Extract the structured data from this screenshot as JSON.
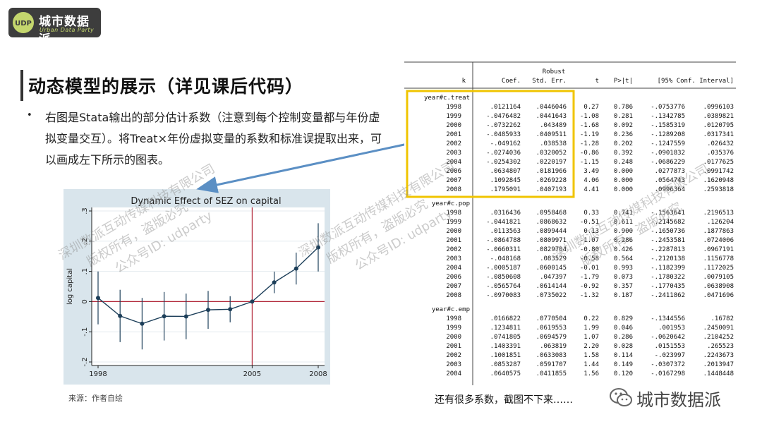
{
  "brand": {
    "logo_badge": "UDP",
    "logo_title": "城市数据派",
    "logo_subtitle": "Urban Data Party",
    "footer_name": "城市数据派",
    "accent_color": "#c4d66d"
  },
  "slide": {
    "title": "动态模型的展示（详见课后代码）",
    "bullet": "右图是Stata输出的部分估计系数（注意到每个控制变量都与年份虚拟变量交互）。将Treat×年份虚拟变量的系数和标准误提取出来，可以画成左下所示的图表。",
    "source": "来源：作者自绘",
    "note": "还有很多系数，截图不下来……"
  },
  "watermark": {
    "line1": "深圳数派互动传媒科技有限公司",
    "line2": "版权所有，盗版必究",
    "line3": "公众号ID: udparty"
  },
  "chart_data": {
    "type": "line",
    "title": "Dynamic Effect of SEZ on capital",
    "xlabel": "",
    "ylabel": "log capital",
    "x": [
      1998,
      1999,
      2000,
      2001,
      2002,
      2003,
      2004,
      2005,
      2006,
      2007,
      2008
    ],
    "y": [
      0.0121164,
      -0.0476482,
      -0.0732262,
      -0.0485933,
      -0.049162,
      -0.0274036,
      -0.0254302,
      0,
      0.0634807,
      0.1092845,
      0.1795091
    ],
    "ci_low": [
      -0.0753776,
      -0.1342785,
      -0.1585319,
      -0.1289208,
      -0.1247559,
      -0.0901832,
      -0.0686229,
      0,
      0.0277873,
      0.0564743,
      0.0996364
    ],
    "ci_high": [
      0.0996103,
      0.0389821,
      0.0120795,
      0.0317341,
      0.026432,
      0.035376,
      0.0177625,
      0,
      0.0991742,
      0.1620948,
      0.2593818
    ],
    "x_ticks": [
      "1998",
      "2005",
      "2008"
    ],
    "y_ticks": [
      "-.2",
      "-.1",
      "0",
      ".1",
      ".2",
      ".3"
    ],
    "xlim": [
      1998,
      2008
    ],
    "ylim": [
      -0.2,
      0.3
    ],
    "reference_lines": {
      "x": 2005,
      "y": 0
    },
    "reference_color": "#b2283a",
    "series_color": "#1d3f5a",
    "background": "#d9e5ec"
  },
  "stata_table": {
    "header1": [
      "",
      "",
      "Robust",
      "",
      "",
      "",
      ""
    ],
    "header2": [
      "k",
      "Coef.",
      "Std. Err.",
      "t",
      "P>|t|",
      "[95% Conf. Interval]",
      ""
    ],
    "groups": [
      {
        "name": "year#c.treat",
        "rows": [
          [
            "1998",
            ".0121164",
            ".0446046",
            "0.27",
            "0.786",
            "-.0753776",
            ".0996103"
          ],
          [
            "1999",
            "-.0476482",
            ".0441643",
            "-1.08",
            "0.281",
            "-.1342785",
            ".0389821"
          ],
          [
            "2000",
            "-.0732262",
            ".043489",
            "-1.68",
            "0.092",
            "-.1585319",
            ".0120795"
          ],
          [
            "2001",
            "-.0485933",
            ".0409511",
            "-1.19",
            "0.236",
            "-.1289208",
            ".0317341"
          ],
          [
            "2002",
            "-.049162",
            ".038538",
            "-1.28",
            "0.202",
            "-.1247559",
            ".026432"
          ],
          [
            "2003",
            "-.0274036",
            ".0320052",
            "-0.86",
            "0.392",
            "-.0901832",
            ".035376"
          ],
          [
            "2004",
            "-.0254302",
            ".0220197",
            "-1.15",
            "0.248",
            "-.0686229",
            ".0177625"
          ],
          [
            "2006",
            ".0634807",
            ".0181966",
            "3.49",
            "0.000",
            ".0277873",
            ".0991742"
          ],
          [
            "2007",
            ".1092845",
            ".0269228",
            "4.06",
            "0.000",
            ".0564743",
            ".1620948"
          ],
          [
            "2008",
            ".1795091",
            ".0407193",
            "4.41",
            "0.000",
            ".0996364",
            ".2593818"
          ]
        ]
      },
      {
        "name": "year#c.pop",
        "rows": [
          [
            "1998",
            ".0316436",
            ".0958468",
            "0.33",
            "0.741",
            "-.1563641",
            ".2196513"
          ],
          [
            "1999",
            "-.0441821",
            ".0868632",
            "-0.51",
            "0.611",
            "-.2145682",
            ".126204"
          ],
          [
            "2000",
            ".0113563",
            ".0899444",
            "0.13",
            "0.900",
            "-.1650736",
            ".1877863"
          ],
          [
            "2001",
            "-.0864788",
            ".0809971",
            "-1.07",
            "0.286",
            "-.2453581",
            ".0724006"
          ],
          [
            "2002",
            "-.0660311",
            ".0829704",
            "-0.80",
            "0.426",
            "-.2287813",
            ".0967191"
          ],
          [
            "2003",
            "-.048168",
            ".083529",
            "-0.58",
            "0.564",
            "-.2120138",
            ".1156778"
          ],
          [
            "2004",
            "-.0005187",
            ".0600145",
            "-0.01",
            "0.993",
            "-.1182399",
            ".1172025"
          ],
          [
            "2006",
            "-.0850608",
            ".047397",
            "-1.79",
            "0.073",
            "-.1780322",
            ".0079105"
          ],
          [
            "2007",
            "-.0565764",
            ".0614144",
            "-0.92",
            "0.357",
            "-.1770435",
            ".0638908"
          ],
          [
            "2008",
            "-.0970083",
            ".0735022",
            "-1.32",
            "0.187",
            "-.2411862",
            ".0471696"
          ]
        ]
      },
      {
        "name": "year#c.emp",
        "rows": [
          [
            "1998",
            ".0166822",
            ".0770504",
            "0.22",
            "0.829",
            "-.1344556",
            ".16782"
          ],
          [
            "1999",
            ".1234811",
            ".0619553",
            "1.99",
            "0.046",
            ".001953",
            ".2450091"
          ],
          [
            "2000",
            ".0741805",
            ".0694579",
            "1.07",
            "0.286",
            "-.0620642",
            ".2104252"
          ],
          [
            "2001",
            ".1403391",
            ".063819",
            "2.20",
            "0.028",
            ".0151553",
            ".265523"
          ],
          [
            "2002",
            ".1001851",
            ".0633083",
            "1.58",
            "0.114",
            "-.023997",
            ".2243673"
          ],
          [
            "2003",
            ".0853287",
            ".0591707",
            "1.44",
            "0.149",
            "-.0307372",
            ".2013947"
          ],
          [
            "2004",
            ".0640575",
            ".0411855",
            "1.56",
            "0.120",
            "-.0167298",
            ".1448448"
          ]
        ]
      }
    ],
    "highlight_color": "#f0c400"
  },
  "arrow_color": "#5b8fc4"
}
